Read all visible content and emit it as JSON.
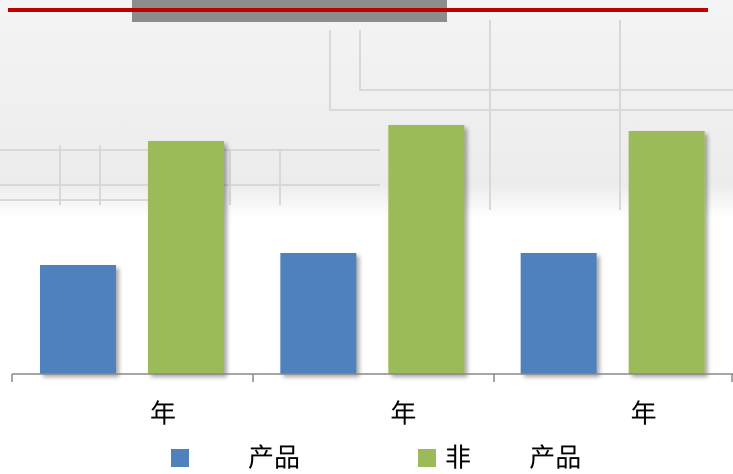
{
  "chart_data": {
    "type": "bar",
    "categories": [
      "年",
      "年",
      "年"
    ],
    "series": [
      {
        "name": "产品",
        "color": "#4f81bd",
        "values": [
          109,
          121,
          121
        ]
      },
      {
        "name": "非 产品",
        "color": "#9bbb59",
        "values": [
          233,
          249,
          243
        ]
      }
    ],
    "ylim": [
      0,
      260
    ]
  }
}
